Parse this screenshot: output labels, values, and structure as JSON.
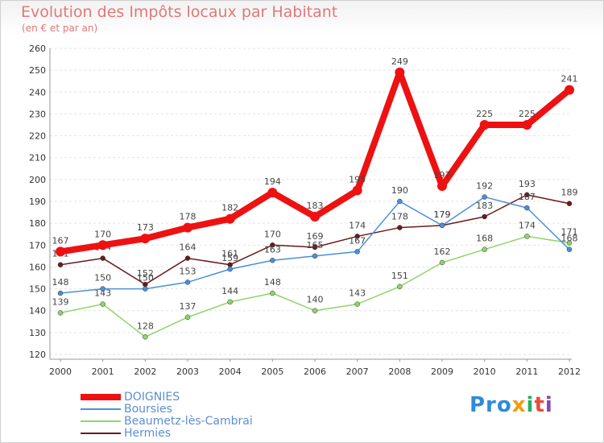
{
  "chart_data": {
    "type": "line",
    "title": "Evolution des Impôts locaux par Habitant",
    "subtitle": "(en € et par an)",
    "x": [
      "2000",
      "2001",
      "2002",
      "2003",
      "2004",
      "2005",
      "2006",
      "2007",
      "2008",
      "2009",
      "2010",
      "2011",
      "2012"
    ],
    "ylim": [
      120,
      260
    ],
    "yticks": [
      120,
      130,
      140,
      150,
      160,
      170,
      180,
      190,
      200,
      210,
      220,
      230,
      240,
      250,
      260
    ],
    "grid": true,
    "legend_position": "bottom-left",
    "series": [
      {
        "name": "Hermies",
        "color": "#6b1a1a",
        "values": [
          161,
          164,
          152,
          164,
          161,
          170,
          169,
          174,
          178,
          179,
          183,
          193,
          189
        ]
      },
      {
        "name": "Beaumetz-lès-Cambrai",
        "color": "#8fd46a",
        "values": [
          139,
          143,
          128,
          137,
          144,
          148,
          140,
          143,
          151,
          162,
          168,
          174,
          171
        ]
      },
      {
        "name": "Boursies",
        "color": "#4a90d9",
        "values": [
          148,
          150,
          150,
          153,
          159,
          163,
          165,
          167,
          190,
          179,
          192,
          187,
          168
        ]
      },
      {
        "name": "DOIGNIES",
        "color": "#ee1111",
        "values": [
          167,
          170,
          173,
          178,
          182,
          194,
          183,
          195,
          249,
          197,
          225,
          225,
          241
        ]
      }
    ]
  },
  "legend": [
    {
      "label": "DOIGNIES",
      "color": "#ee1111"
    },
    {
      "label": "Boursies",
      "color": "#4a90d9"
    },
    {
      "label": "Beaumetz-lès-Cambrai",
      "color": "#8fd46a"
    },
    {
      "label": "Hermies",
      "color": "#6b1a1a"
    }
  ],
  "logo": {
    "c1": "Pro",
    "c2": "x",
    "c3": "i",
    "c4": "t",
    "c5": "i"
  }
}
